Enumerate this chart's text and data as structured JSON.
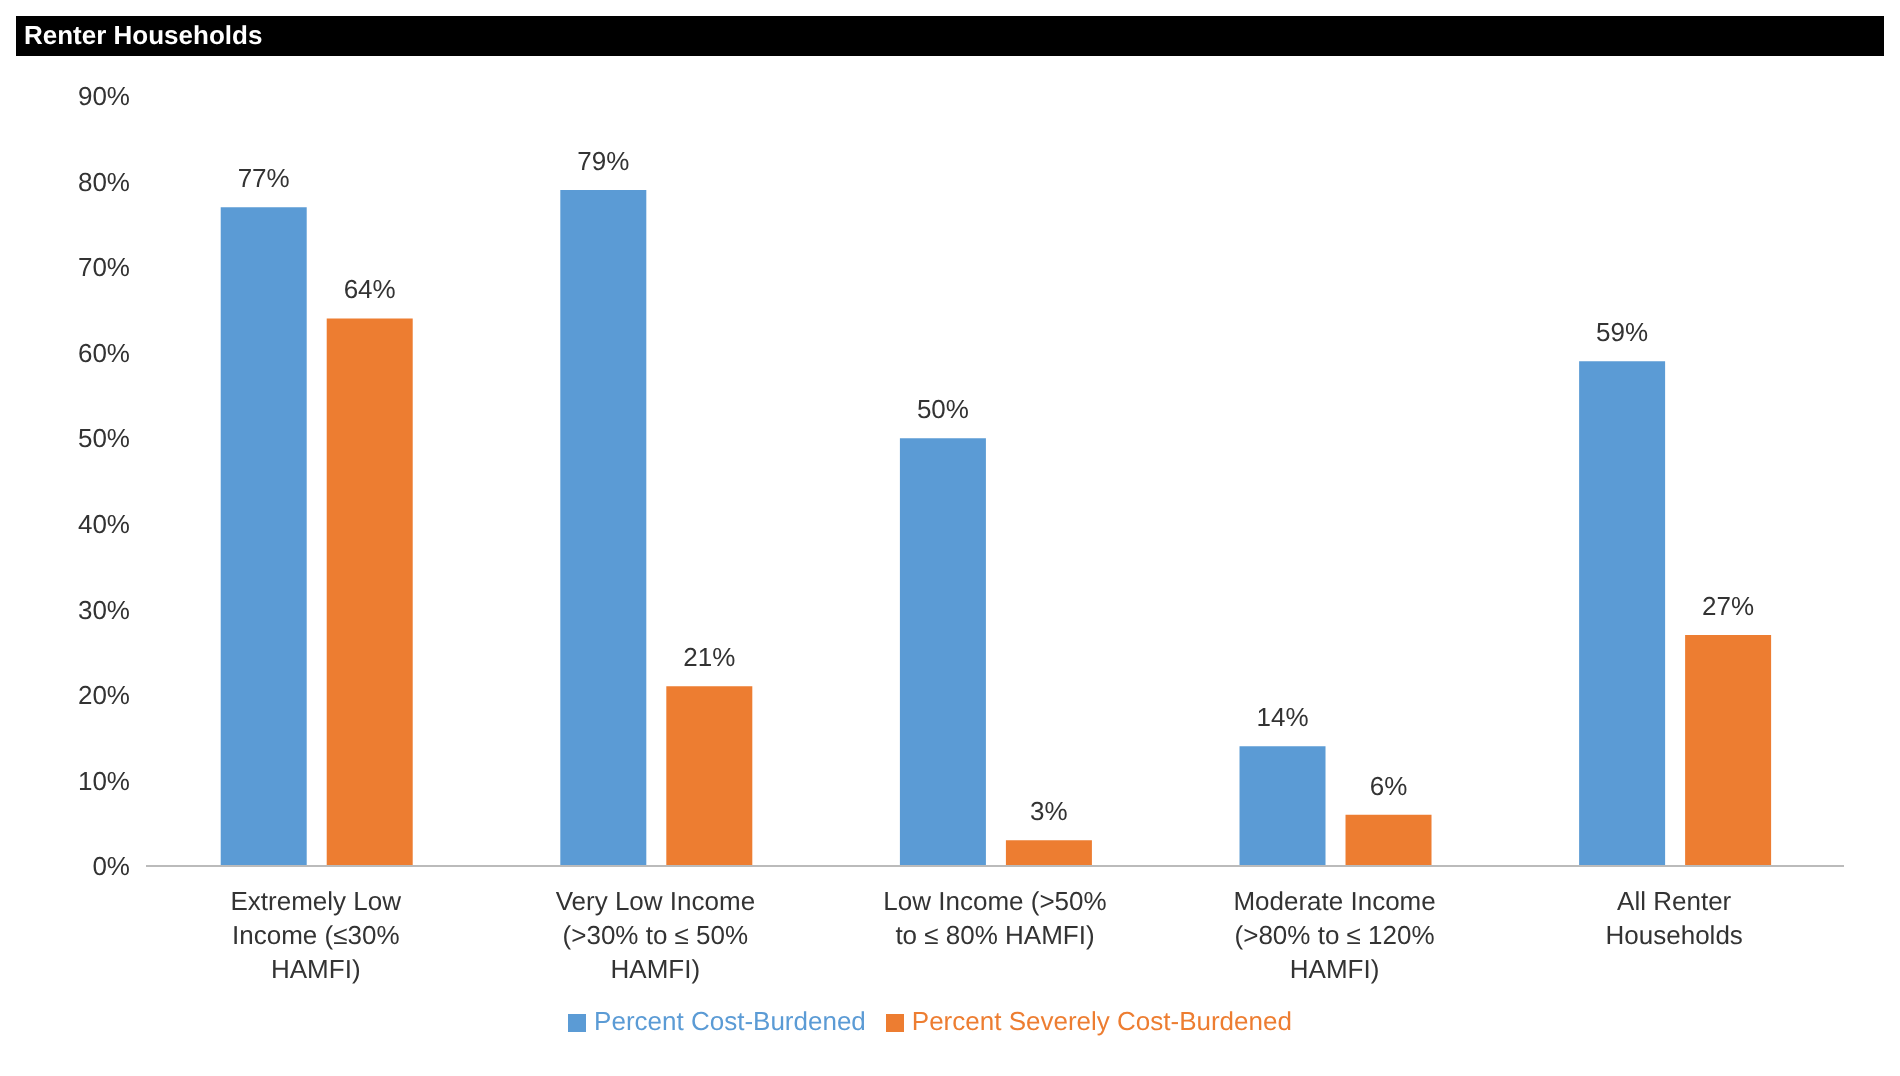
{
  "chart_data": {
    "type": "bar",
    "title": "Renter Households",
    "categories": [
      "Extremely Low Income (≤30% HAMFI)",
      "Very Low Income (>30% to ≤ 50% HAMFI)",
      "Low Income (>50% to ≤ 80% HAMFI)",
      "Moderate Income (>80% to ≤ 120% HAMFI)",
      "All Renter Households"
    ],
    "series": [
      {
        "name": "Percent Cost-Burdened",
        "color": "#5b9bd5",
        "values": [
          77,
          79,
          50,
          14,
          59
        ],
        "value_labels": [
          "77%",
          "79%",
          "50%",
          "14%",
          "59%"
        ]
      },
      {
        "name": "Percent Severely Cost-Burdened",
        "color": "#ed7d31",
        "values": [
          64,
          21,
          3,
          6,
          27
        ],
        "value_labels": [
          "64%",
          "21%",
          "3%",
          "6%",
          "27%"
        ]
      }
    ],
    "ylim": [
      0,
      90
    ],
    "yticks": [
      {
        "value": 0,
        "label": "0%"
      },
      {
        "value": 10,
        "label": "10%"
      },
      {
        "value": 20,
        "label": "20%"
      },
      {
        "value": 30,
        "label": "30%"
      },
      {
        "value": 40,
        "label": "40%"
      },
      {
        "value": 50,
        "label": "50%"
      },
      {
        "value": 60,
        "label": "60%"
      },
      {
        "value": 70,
        "label": "70%"
      },
      {
        "value": 80,
        "label": "80%"
      },
      {
        "value": 90,
        "label": "90%"
      }
    ],
    "legend": "bottom"
  }
}
